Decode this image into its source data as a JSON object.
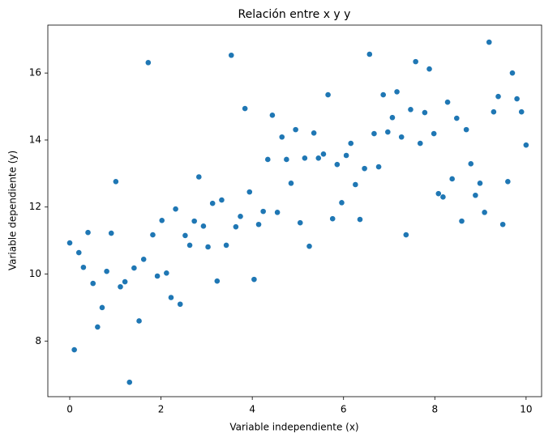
{
  "chart_data": {
    "type": "scatter",
    "title": "Relación entre x y y",
    "x_label": "Variable independiente (x)",
    "y_label": "Variable dependiente (y)",
    "color": "#1f77b4",
    "x": [
      0,
      0.1,
      0.2,
      0.3,
      0.4,
      0.51,
      0.61,
      0.71,
      0.81,
      0.91,
      1.01,
      1.11,
      1.21,
      1.31,
      1.41,
      1.52,
      1.62,
      1.72,
      1.82,
      1.92,
      2.02,
      2.12,
      2.22,
      2.32,
      2.42,
      2.53,
      2.63,
      2.73,
      2.83,
      2.93,
      3.03,
      3.13,
      3.23,
      3.33,
      3.43,
      3.54,
      3.64,
      3.74,
      3.84,
      3.94,
      4.04,
      4.14,
      4.24,
      4.34,
      4.44,
      4.55,
      4.65,
      4.75,
      4.85,
      4.95,
      5.05,
      5.15,
      5.25,
      5.35,
      5.45,
      5.56,
      5.66,
      5.76,
      5.86,
      5.96,
      6.06,
      6.16,
      6.26,
      6.36,
      6.46,
      6.57,
      6.67,
      6.77,
      6.87,
      6.97,
      7.07,
      7.17,
      7.27,
      7.37,
      7.47,
      7.58,
      7.68,
      7.78,
      7.88,
      7.98,
      8.08,
      8.18,
      8.28,
      8.38,
      8.48,
      8.59,
      8.69,
      8.79,
      8.89,
      8.99,
      9.09,
      9.19,
      9.29,
      9.39,
      9.49,
      9.6,
      9.7,
      9.8,
      9.9,
      10
    ],
    "values": [
      10.93,
      7.74,
      10.64,
      10.2,
      11.24,
      9.72,
      8.42,
      9.0,
      10.08,
      11.22,
      12.76,
      9.62,
      9.77,
      6.77,
      10.18,
      8.6,
      10.44,
      16.31,
      11.17,
      9.94,
      11.6,
      10.03,
      9.3,
      11.94,
      9.1,
      11.15,
      10.86,
      11.58,
      12.9,
      11.43,
      10.81,
      12.11,
      9.79,
      12.21,
      10.86,
      16.53,
      11.41,
      11.72,
      14.94,
      12.45,
      9.84,
      11.48,
      11.87,
      13.42,
      14.74,
      11.84,
      14.09,
      13.42,
      12.71,
      14.31,
      11.53,
      13.46,
      10.83,
      14.21,
      13.46,
      13.58,
      15.35,
      11.65,
      13.27,
      12.13,
      13.54,
      13.9,
      12.67,
      11.63,
      13.15,
      16.56,
      14.19,
      13.2,
      15.35,
      14.24,
      14.67,
      15.44,
      14.09,
      11.17,
      14.91,
      16.34,
      13.9,
      14.82,
      16.12,
      14.19,
      12.4,
      12.3,
      15.13,
      12.84,
      14.65,
      11.58,
      14.31,
      13.29,
      12.35,
      12.71,
      11.84,
      16.92,
      14.84,
      15.3,
      11.48,
      12.76,
      16.0,
      15.23,
      14.84,
      13.85
    ],
    "xlim": [
      -0.48,
      10.34
    ],
    "ylim": [
      6.34,
      17.43
    ],
    "xticks": [
      0,
      2,
      4,
      6,
      8,
      10
    ],
    "yticks": [
      8,
      10,
      12,
      14,
      16
    ],
    "grid": false
  }
}
